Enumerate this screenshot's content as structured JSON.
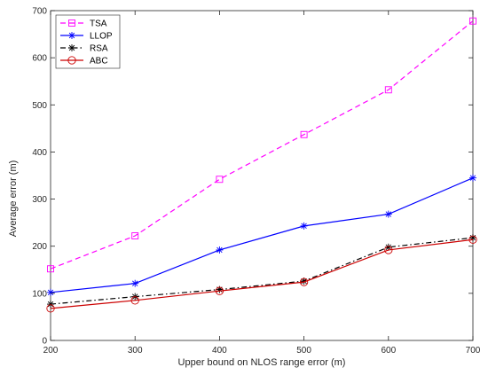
{
  "chart_data": {
    "type": "line",
    "title": "",
    "xlabel": "Upper bound on NLOS range error (m)",
    "ylabel": "Average error (m)",
    "x": [
      200,
      300,
      400,
      500,
      600,
      700
    ],
    "xlim": [
      200,
      700
    ],
    "ylim": [
      0,
      700
    ],
    "xticks": [
      200,
      300,
      400,
      500,
      600,
      700
    ],
    "yticks": [
      0,
      100,
      200,
      300,
      400,
      500,
      600,
      700
    ],
    "grid": false,
    "legend_position": "top-left",
    "series": [
      {
        "name": "TSA",
        "values": [
          152,
          222,
          342,
          437,
          532,
          678
        ],
        "color": "#ff00ff",
        "line_style": "dashed",
        "marker": "square"
      },
      {
        "name": "LLOP",
        "values": [
          102,
          121,
          192,
          243,
          268,
          345
        ],
        "color": "#0000ff",
        "line_style": "solid",
        "marker": "asterisk"
      },
      {
        "name": "RSA",
        "values": [
          77,
          93,
          108,
          126,
          198,
          218
        ],
        "color": "#000000",
        "line_style": "dash-dot",
        "marker": "asterisk"
      },
      {
        "name": "ABC",
        "values": [
          68,
          85,
          105,
          124,
          192,
          214
        ],
        "color": "#cc0000",
        "line_style": "solid",
        "marker": "circle"
      }
    ]
  }
}
